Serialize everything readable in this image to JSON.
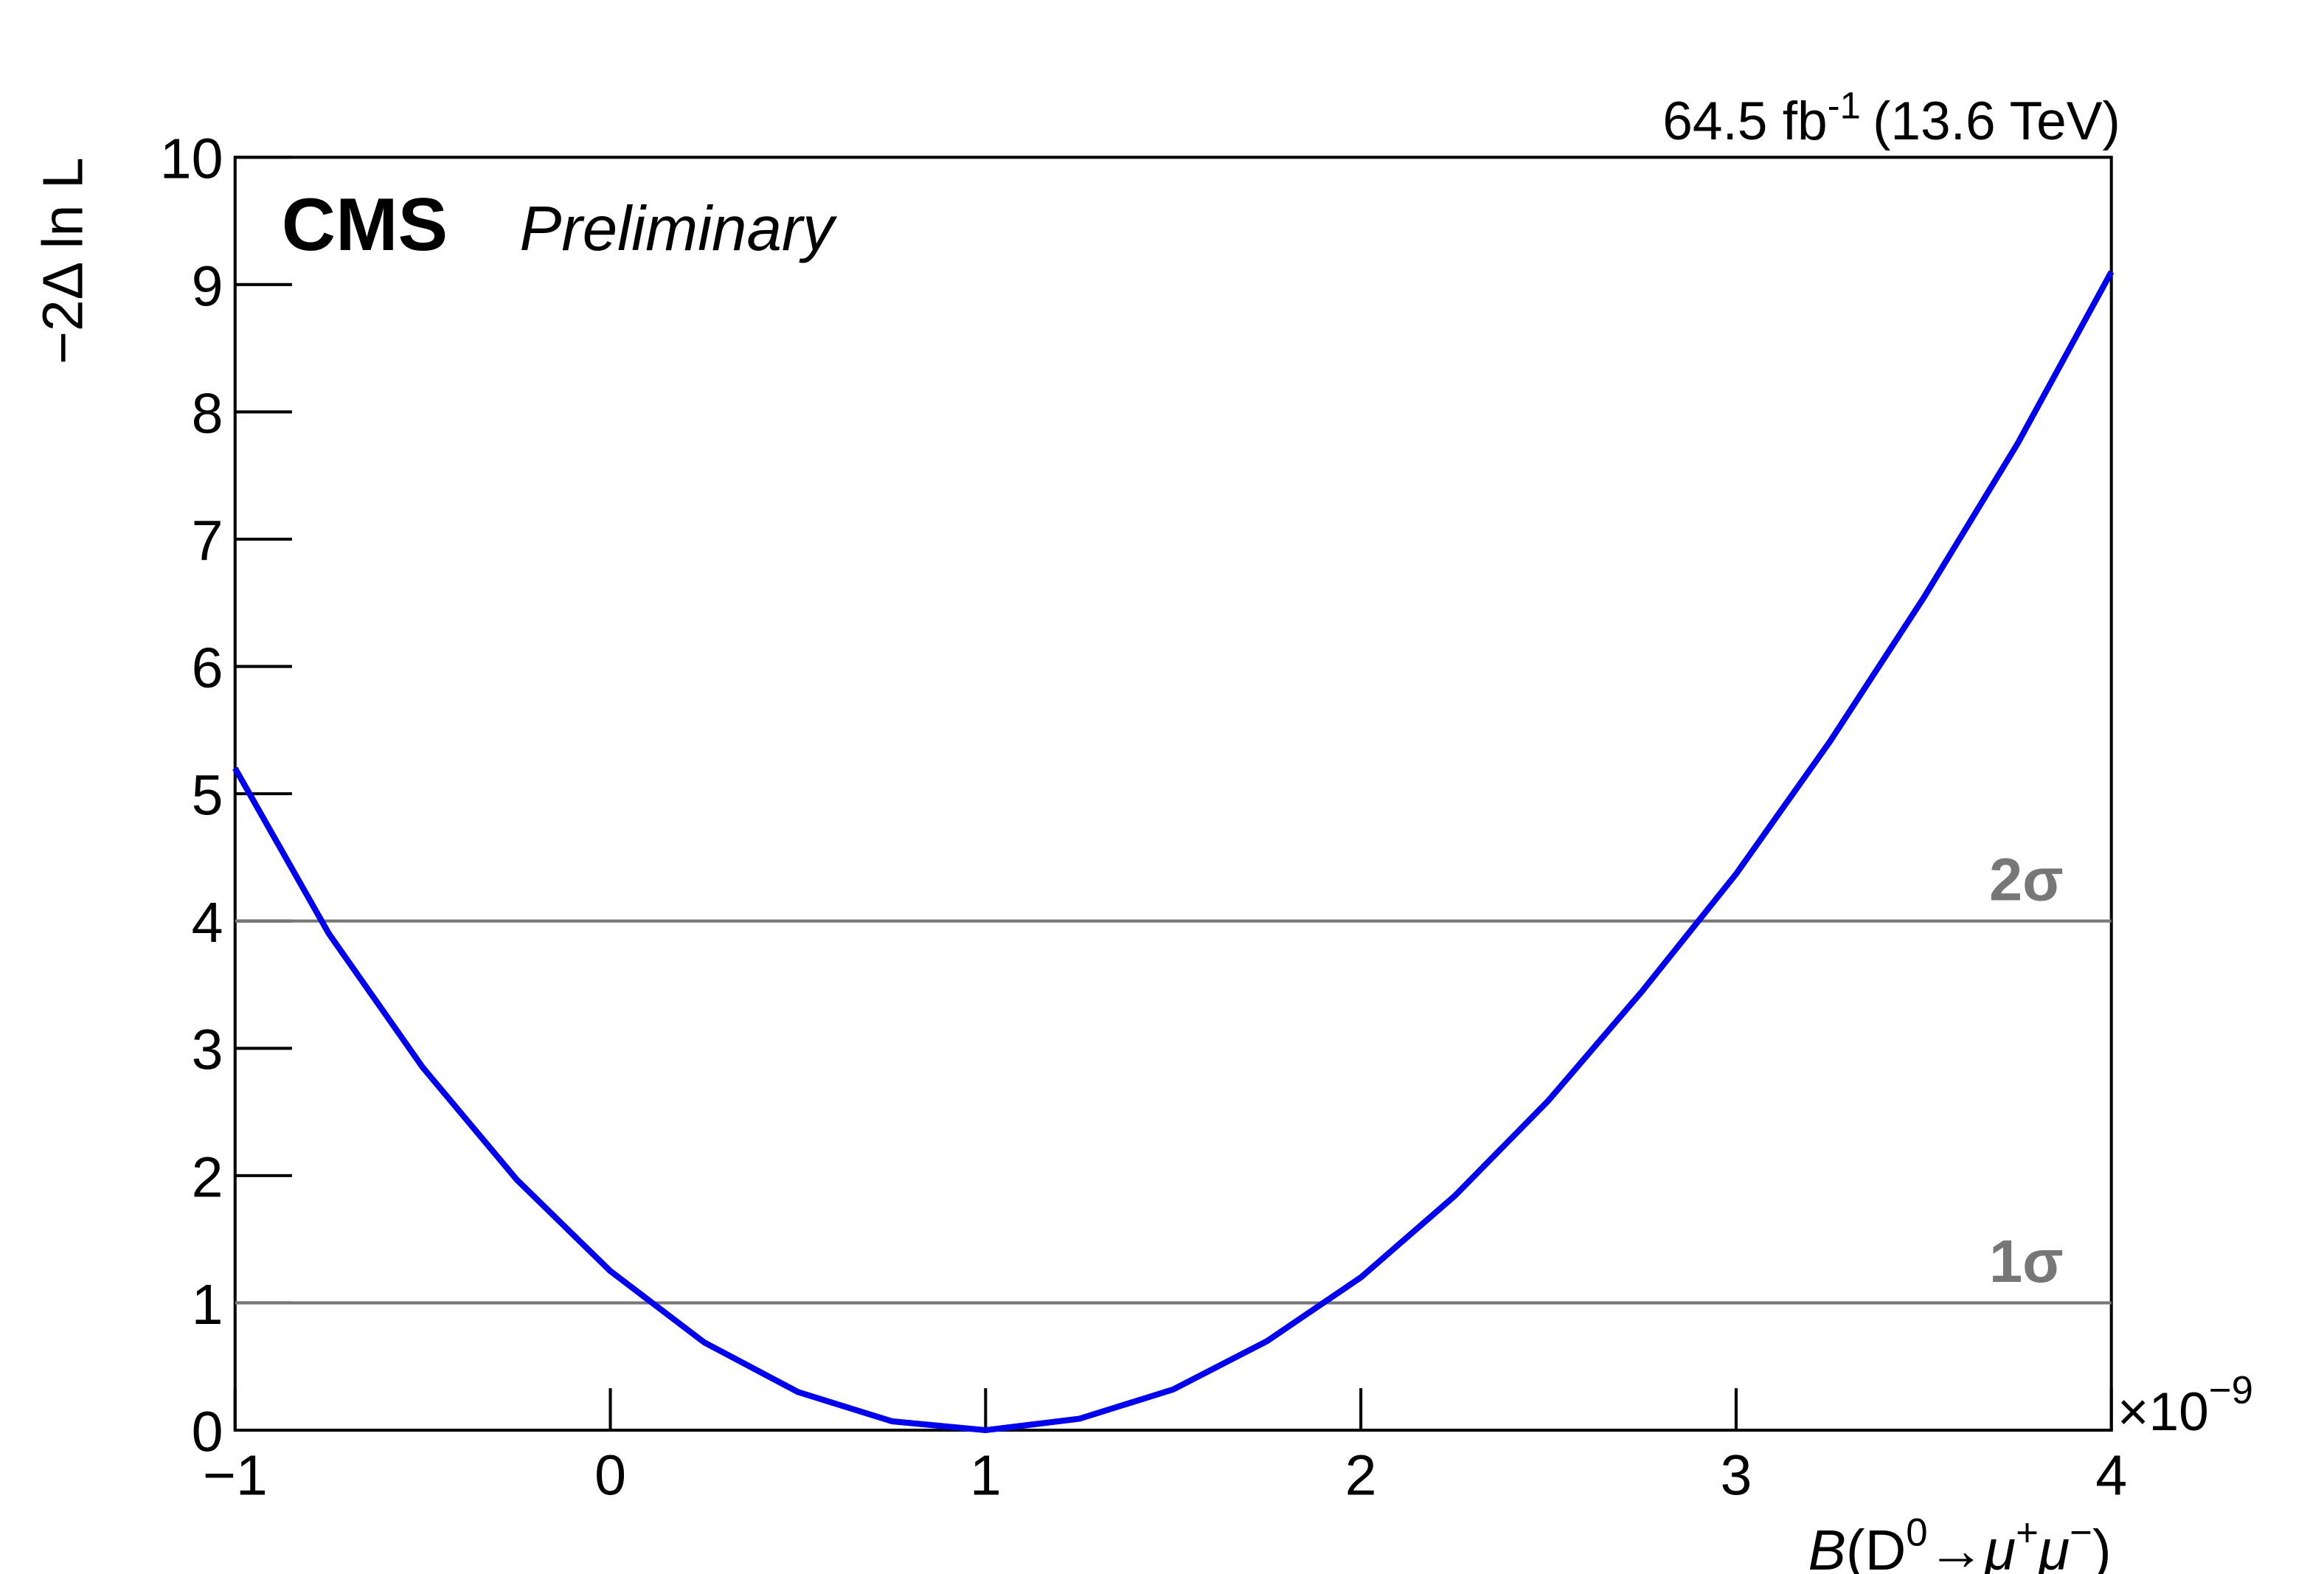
{
  "chart_data": {
    "type": "line",
    "experiment": "CMS",
    "status": "Preliminary",
    "luminosity": {
      "text": "64.5 fb",
      "superscript": "-1",
      "suffix": "(13.6 TeV)"
    },
    "x_label": {
      "italic": "B",
      "open": "(D",
      "superscript": "0",
      "arrow": "→",
      "mu1": "μ",
      "sup1": "+",
      "mu2": "μ",
      "sup2": "−",
      "close": ")"
    },
    "y_label": "−2Δ ln L",
    "x_multiplier": {
      "text": "×10",
      "superscript": "−9"
    },
    "x": [
      -1,
      -0.75,
      -0.5,
      -0.25,
      0,
      0.25,
      0.5,
      0.75,
      1,
      1.25,
      1.5,
      1.75,
      2,
      2.25,
      2.5,
      2.75,
      3,
      3.25,
      3.5,
      3.75,
      4
    ],
    "series": [
      {
        "color": "#0000ee",
        "values": [
          5.2,
          3.9,
          2.85,
          1.97,
          1.25,
          0.69,
          0.3,
          0.07,
          0,
          0.09,
          0.32,
          0.7,
          1.2,
          1.84,
          2.59,
          3.45,
          4.37,
          5.41,
          6.54,
          7.75,
          9.1
        ]
      }
    ],
    "reference_lines": [
      {
        "y": 1,
        "label": "1σ",
        "color": "#777777"
      },
      {
        "y": 4,
        "label": "2σ",
        "color": "#777777"
      }
    ],
    "xlim": [
      -1,
      4
    ],
    "xticks": [
      {
        "value": -1,
        "label": "−1"
      },
      0,
      1,
      2,
      3,
      4
    ],
    "ylim": [
      0,
      10
    ],
    "yticks": [
      0,
      1,
      2,
      3,
      4,
      5,
      6,
      7,
      8,
      9,
      10
    ]
  }
}
